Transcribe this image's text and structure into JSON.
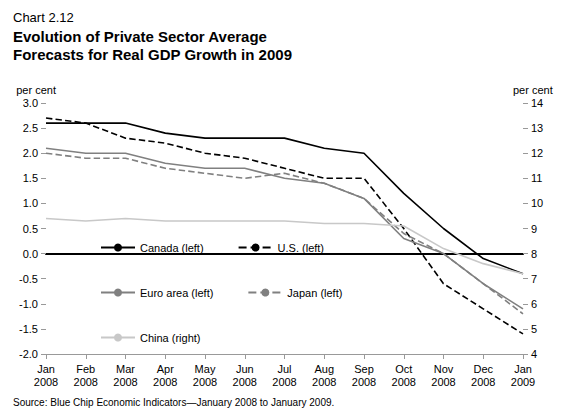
{
  "chart_data": {
    "type": "line",
    "chart_label": "Chart 2.12",
    "title": "Evolution of Private Sector Average Forecasts for Real GDP Growth in 2009",
    "y_label": "per cent",
    "y2_label": "per cent",
    "source": "Source: Blue Chip Economic Indicators—January 2008 to January 2009.",
    "categories": [
      "Jan 2008",
      "Feb 2008",
      "Mar 2008",
      "Apr 2008",
      "May 2008",
      "Jun 2008",
      "Jul 2008",
      "Aug 2008",
      "Sep 2008",
      "Oct 2008",
      "Nov 2008",
      "Dec 2008",
      "Jan 2009"
    ],
    "series": [
      {
        "name": "Canada (left)",
        "color": "#000000",
        "line_style": "solid",
        "values": [
          2.6,
          2.6,
          2.6,
          2.4,
          2.3,
          2.3,
          2.3,
          2.1,
          2.0,
          1.2,
          0.5,
          -0.1,
          -0.4
        ]
      },
      {
        "name": "U.S. (left)",
        "color": "#000000",
        "line_style": "dashed",
        "values": [
          2.7,
          2.6,
          2.3,
          2.2,
          2.0,
          1.9,
          1.7,
          1.5,
          1.5,
          0.5,
          -0.6,
          -1.1,
          -1.6
        ]
      },
      {
        "name": "Euro area (left)",
        "color": "#808080",
        "line_style": "solid",
        "values": [
          2.1,
          2.0,
          2.0,
          1.8,
          1.7,
          1.7,
          1.5,
          1.4,
          1.1,
          0.3,
          0.0,
          -0.6,
          -1.1
        ]
      },
      {
        "name": "Japan (left)",
        "color": "#808080",
        "line_style": "dashed",
        "values": [
          2.0,
          1.9,
          1.9,
          1.7,
          1.6,
          1.5,
          1.6,
          1.4,
          1.1,
          0.4,
          0.0,
          -0.6,
          -1.2
        ]
      },
      {
        "name": "China (right)",
        "color": "#c8c8c8",
        "line_style": "solid",
        "axis": "y2",
        "values": [
          9.4,
          9.3,
          9.4,
          9.3,
          9.3,
          9.3,
          9.3,
          9.2,
          9.2,
          9.1,
          8.2,
          7.6,
          7.2
        ]
      }
    ],
    "ylim": [
      -2,
      3
    ],
    "yticks": [
      {
        "value": -2,
        "label": "-2.0"
      },
      -1.5,
      {
        "value": -1,
        "label": "-1.0"
      },
      -0.5,
      {
        "value": 0,
        "label": "0.0"
      },
      0.5,
      {
        "value": 1,
        "label": "1.0"
      },
      1.5,
      {
        "value": 2,
        "label": "2.0"
      },
      2.5,
      {
        "value": 3,
        "label": "3.0"
      }
    ],
    "y2lim": [
      4,
      14
    ],
    "y2ticks": [
      4,
      5,
      6,
      7,
      8,
      9,
      10,
      11,
      12,
      13,
      14
    ],
    "grid": false,
    "legend": "bottom-left"
  }
}
